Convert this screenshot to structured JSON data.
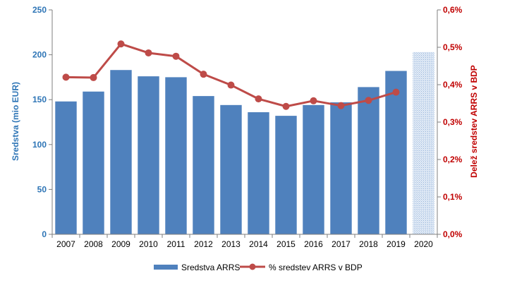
{
  "chart_data": {
    "type": "bar",
    "categories": [
      "2007",
      "2008",
      "2009",
      "2010",
      "2011",
      "2012",
      "2013",
      "2014",
      "2015",
      "2016",
      "2017",
      "2018",
      "2019",
      "2020"
    ],
    "series": [
      {
        "name": "Sredstva ARRS",
        "type": "bar",
        "axis": "left",
        "color": "#4f81bd",
        "values": [
          148,
          159,
          183,
          176,
          175,
          154,
          144,
          136,
          132,
          144,
          147,
          164,
          182,
          203
        ],
        "hatched_categories": [
          "2020"
        ]
      },
      {
        "name": "% sredstev ARRS v BDP",
        "type": "line",
        "axis": "right",
        "color": "#be4b48",
        "values": [
          0.42,
          0.419,
          0.509,
          0.485,
          0.476,
          0.428,
          0.399,
          0.362,
          0.342,
          0.357,
          0.344,
          0.358,
          0.38,
          null
        ]
      }
    ],
    "ylabel": "Sredstva (mio EUR)",
    "y2label": "Delež sredstev ARRS v BDP",
    "ylim": [
      0,
      250
    ],
    "y2lim": [
      0,
      0.6
    ],
    "y_ticks": [
      "0",
      "50",
      "100",
      "150",
      "200",
      "250"
    ],
    "y2_ticks": [
      "0,0%",
      "0,1%",
      "0,2%",
      "0,3%",
      "0,4%",
      "0,5%",
      "0,6%"
    ],
    "grid": false,
    "legend_position": "bottom"
  }
}
